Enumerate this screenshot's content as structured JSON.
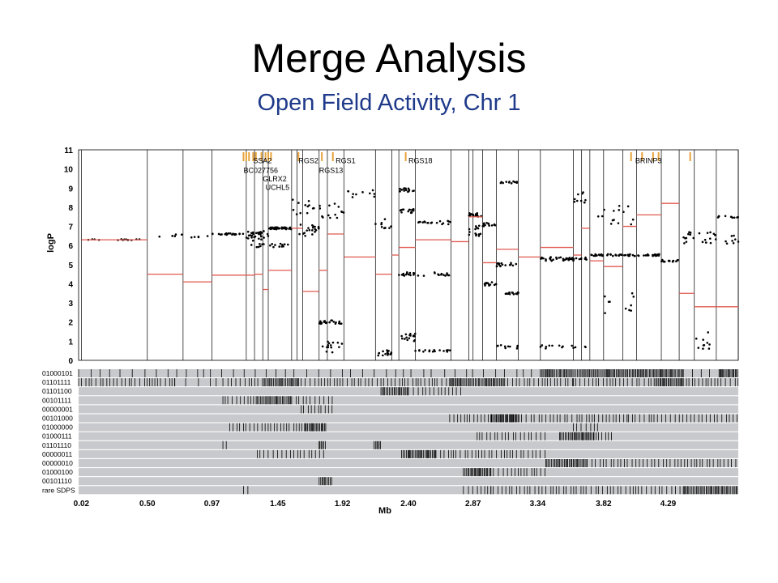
{
  "slide": {
    "title": "Merge Analysis",
    "subtitle": "Open Field Activity, Chr 1"
  },
  "colors": {
    "merge_line": "#e05a50",
    "gene_tick": "#e8a33a",
    "track_bg": "#c8c9cc",
    "point": "#000000"
  },
  "chart_data": {
    "type": "scatter",
    "title": "",
    "xlabel": "Mb",
    "ylabel": "logP",
    "xlim": [
      0.0,
      4.8
    ],
    "ylim": [
      0,
      11
    ],
    "x_ticks": [
      "0.02",
      "0.50",
      "0.97",
      "1.45",
      "1.92",
      "2.40",
      "2.87",
      "3.34",
      "3.82",
      "4.29"
    ],
    "x_tick_values": [
      0.02,
      0.5,
      0.97,
      1.45,
      1.92,
      2.4,
      2.87,
      3.34,
      3.82,
      4.29
    ],
    "y_ticks": [
      "0",
      "1",
      "2",
      "3",
      "4",
      "5",
      "6",
      "7",
      "8",
      "9",
      "10",
      "11"
    ],
    "grid": false,
    "gene_labels": [
      {
        "label": "SSA2",
        "x": 1.27,
        "y": 10.3
      },
      {
        "label": "BC027756",
        "x": 1.2,
        "y": 9.8
      },
      {
        "label": "GLRX2",
        "x": 1.34,
        "y": 9.35
      },
      {
        "label": "UCHL5",
        "x": 1.36,
        "y": 8.9
      },
      {
        "label": "RGS2",
        "x": 1.6,
        "y": 10.3
      },
      {
        "label": "RGS13",
        "x": 1.75,
        "y": 9.8
      },
      {
        "label": "RGS1",
        "x": 1.87,
        "y": 10.3
      },
      {
        "label": "RGS18",
        "x": 2.4,
        "y": 10.3
      },
      {
        "label": "BRINP3",
        "x": 4.05,
        "y": 10.3
      }
    ],
    "gene_ticks_x": [
      1.2,
      1.22,
      1.24,
      1.27,
      1.29,
      1.33,
      1.36,
      1.38,
      1.4,
      1.6,
      1.77,
      1.85,
      2.38,
      4.02,
      4.1,
      4.18,
      4.22,
      4.45
    ],
    "interval_boundaries": [
      0.02,
      0.5,
      0.76,
      0.97,
      1.22,
      1.28,
      1.34,
      1.38,
      1.55,
      1.59,
      1.63,
      1.75,
      1.81,
      1.93,
      2.16,
      2.28,
      2.33,
      2.45,
      2.71,
      2.84,
      2.87,
      2.94,
      3.04,
      3.2,
      3.36,
      3.6,
      3.66,
      3.72,
      3.82,
      3.96,
      4.06,
      4.24,
      4.37,
      4.48,
      4.64,
      4.8
    ],
    "merge_segments": [
      {
        "x0": 0.02,
        "x1": 0.5,
        "y": 6.3
      },
      {
        "x0": 0.5,
        "x1": 0.76,
        "y": 4.5
      },
      {
        "x0": 0.76,
        "x1": 0.97,
        "y": 4.1
      },
      {
        "x0": 0.97,
        "x1": 1.28,
        "y": 4.45
      },
      {
        "x0": 1.28,
        "x1": 1.34,
        "y": 4.5
      },
      {
        "x0": 1.34,
        "x1": 1.38,
        "y": 3.7
      },
      {
        "x0": 1.38,
        "x1": 1.55,
        "y": 4.7
      },
      {
        "x0": 1.55,
        "x1": 1.63,
        "y": 6.9
      },
      {
        "x0": 1.63,
        "x1": 1.75,
        "y": 3.6
      },
      {
        "x0": 1.75,
        "x1": 1.81,
        "y": 4.7
      },
      {
        "x0": 1.81,
        "x1": 1.93,
        "y": 6.6
      },
      {
        "x0": 1.93,
        "x1": 2.16,
        "y": 5.4
      },
      {
        "x0": 2.16,
        "x1": 2.28,
        "y": 4.5
      },
      {
        "x0": 2.28,
        "x1": 2.33,
        "y": 5.5
      },
      {
        "x0": 2.33,
        "x1": 2.45,
        "y": 5.9
      },
      {
        "x0": 2.45,
        "x1": 2.71,
        "y": 6.3
      },
      {
        "x0": 2.71,
        "x1": 2.84,
        "y": 6.2
      },
      {
        "x0": 2.84,
        "x1": 2.94,
        "y": 7.5
      },
      {
        "x0": 2.94,
        "x1": 3.04,
        "y": 5.1
      },
      {
        "x0": 3.04,
        "x1": 3.2,
        "y": 5.8
      },
      {
        "x0": 3.2,
        "x1": 3.36,
        "y": 5.4
      },
      {
        "x0": 3.36,
        "x1": 3.6,
        "y": 5.9
      },
      {
        "x0": 3.6,
        "x1": 3.66,
        "y": 5.5
      },
      {
        "x0": 3.66,
        "x1": 3.72,
        "y": 6.9
      },
      {
        "x0": 3.72,
        "x1": 3.82,
        "y": 5.2
      },
      {
        "x0": 3.82,
        "x1": 3.96,
        "y": 4.9
      },
      {
        "x0": 3.96,
        "x1": 4.06,
        "y": 7.0
      },
      {
        "x0": 4.06,
        "x1": 4.24,
        "y": 7.6
      },
      {
        "x0": 4.24,
        "x1": 4.37,
        "y": 8.2
      },
      {
        "x0": 4.37,
        "x1": 4.48,
        "y": 3.5
      },
      {
        "x0": 4.48,
        "x1": 4.64,
        "y": 2.8
      },
      {
        "x0": 4.64,
        "x1": 4.8,
        "y": 2.8
      }
    ],
    "point_clusters": [
      {
        "x0": 0.02,
        "x1": 0.48,
        "y": 6.3,
        "n": 14,
        "jitter": 0.03
      },
      {
        "x0": 0.52,
        "x1": 0.95,
        "y": 6.5,
        "n": 10,
        "jitter": 0.1
      },
      {
        "x0": 0.97,
        "x1": 1.22,
        "y": 6.6,
        "n": 22,
        "jitter": 0.04
      },
      {
        "x0": 1.22,
        "x1": 1.38,
        "y": 6.5,
        "n": 30,
        "jitter": 0.25
      },
      {
        "x0": 1.38,
        "x1": 1.55,
        "y": 6.9,
        "n": 40,
        "jitter": 0.05
      },
      {
        "x0": 1.25,
        "x1": 1.55,
        "y": 6.0,
        "n": 18,
        "jitter": 0.1
      },
      {
        "x0": 1.55,
        "x1": 1.75,
        "y": 8.0,
        "n": 12,
        "jitter": 0.4
      },
      {
        "x0": 1.6,
        "x1": 1.75,
        "y": 6.8,
        "n": 20,
        "jitter": 0.3
      },
      {
        "x0": 1.75,
        "x1": 1.93,
        "y": 7.8,
        "n": 14,
        "jitter": 0.4
      },
      {
        "x0": 1.75,
        "x1": 1.93,
        "y": 2.0,
        "n": 22,
        "jitter": 0.1
      },
      {
        "x0": 1.75,
        "x1": 1.93,
        "y": 0.7,
        "n": 14,
        "jitter": 0.3
      },
      {
        "x0": 1.93,
        "x1": 2.16,
        "y": 8.7,
        "n": 10,
        "jitter": 0.2
      },
      {
        "x0": 2.16,
        "x1": 2.28,
        "y": 0.4,
        "n": 16,
        "jitter": 0.15
      },
      {
        "x0": 2.16,
        "x1": 2.28,
        "y": 7.2,
        "n": 10,
        "jitter": 0.3
      },
      {
        "x0": 2.33,
        "x1": 2.45,
        "y": 8.9,
        "n": 14,
        "jitter": 0.1
      },
      {
        "x0": 2.33,
        "x1": 2.45,
        "y": 7.8,
        "n": 14,
        "jitter": 0.1
      },
      {
        "x0": 2.33,
        "x1": 2.45,
        "y": 4.5,
        "n": 14,
        "jitter": 0.1
      },
      {
        "x0": 2.33,
        "x1": 2.45,
        "y": 1.2,
        "n": 16,
        "jitter": 0.2
      },
      {
        "x0": 2.45,
        "x1": 2.71,
        "y": 7.2,
        "n": 18,
        "jitter": 0.1
      },
      {
        "x0": 2.45,
        "x1": 2.71,
        "y": 4.5,
        "n": 14,
        "jitter": 0.1
      },
      {
        "x0": 2.45,
        "x1": 2.71,
        "y": 0.5,
        "n": 16,
        "jitter": 0.05
      },
      {
        "x0": 2.84,
        "x1": 2.94,
        "y": 7.6,
        "n": 20,
        "jitter": 0.1
      },
      {
        "x0": 2.84,
        "x1": 2.94,
        "y": 6.8,
        "n": 14,
        "jitter": 0.3
      },
      {
        "x0": 2.94,
        "x1": 3.04,
        "y": 7.1,
        "n": 14,
        "jitter": 0.1
      },
      {
        "x0": 2.94,
        "x1": 3.04,
        "y": 4.0,
        "n": 14,
        "jitter": 0.1
      },
      {
        "x0": 3.04,
        "x1": 3.2,
        "y": 9.3,
        "n": 12,
        "jitter": 0.05
      },
      {
        "x0": 3.04,
        "x1": 3.2,
        "y": 5.0,
        "n": 16,
        "jitter": 0.1
      },
      {
        "x0": 3.04,
        "x1": 3.2,
        "y": 3.5,
        "n": 14,
        "jitter": 0.05
      },
      {
        "x0": 3.04,
        "x1": 3.2,
        "y": 0.7,
        "n": 10,
        "jitter": 0.1
      },
      {
        "x0": 3.36,
        "x1": 3.72,
        "y": 5.3,
        "n": 40,
        "jitter": 0.1
      },
      {
        "x0": 3.36,
        "x1": 3.72,
        "y": 0.7,
        "n": 14,
        "jitter": 0.1
      },
      {
        "x0": 3.6,
        "x1": 3.72,
        "y": 8.5,
        "n": 10,
        "jitter": 0.3
      },
      {
        "x0": 3.72,
        "x1": 4.24,
        "y": 5.5,
        "n": 60,
        "jitter": 0.05
      },
      {
        "x0": 3.72,
        "x1": 4.06,
        "y": 7.6,
        "n": 14,
        "jitter": 0.5
      },
      {
        "x0": 3.82,
        "x1": 4.06,
        "y": 3.0,
        "n": 10,
        "jitter": 0.6
      },
      {
        "x0": 4.24,
        "x1": 4.37,
        "y": 5.2,
        "n": 18,
        "jitter": 0.05
      },
      {
        "x0": 4.37,
        "x1": 4.64,
        "y": 6.4,
        "n": 22,
        "jitter": 0.3
      },
      {
        "x0": 4.48,
        "x1": 4.64,
        "y": 1.0,
        "n": 10,
        "jitter": 0.5
      },
      {
        "x0": 4.64,
        "x1": 4.8,
        "y": 7.5,
        "n": 10,
        "jitter": 0.05
      },
      {
        "x0": 4.64,
        "x1": 4.8,
        "y": 6.4,
        "n": 8,
        "jitter": 0.3
      }
    ],
    "tracks": [
      {
        "label": "01000101",
        "segments": [
          [
            0.0,
            3.36,
            "n"
          ],
          [
            3.36,
            4.4,
            "d"
          ],
          [
            4.4,
            4.66,
            "n"
          ],
          [
            4.66,
            4.8,
            "d"
          ]
        ]
      },
      {
        "label": "01101111",
        "segments": [
          [
            0.0,
            0.7,
            "s"
          ],
          [
            0.7,
            1.05,
            "n"
          ],
          [
            1.05,
            1.35,
            "s"
          ],
          [
            1.35,
            1.6,
            "d"
          ],
          [
            1.6,
            2.2,
            "s"
          ],
          [
            2.2,
            2.7,
            "s"
          ],
          [
            2.7,
            3.1,
            "d"
          ],
          [
            3.1,
            3.6,
            "s"
          ],
          [
            3.6,
            4.2,
            "s"
          ],
          [
            4.2,
            4.4,
            "d"
          ],
          [
            4.4,
            4.8,
            "s"
          ]
        ]
      },
      {
        "label": "01101100",
        "segments": [
          [
            2.2,
            2.4,
            "d"
          ],
          [
            2.4,
            2.8,
            "s"
          ]
        ]
      },
      {
        "label": "00101111",
        "segments": [
          [
            1.05,
            1.3,
            "s"
          ],
          [
            1.3,
            1.55,
            "d"
          ],
          [
            1.55,
            1.85,
            "s"
          ]
        ]
      },
      {
        "label": "00000001",
        "segments": [
          [
            1.62,
            1.85,
            "s"
          ]
        ]
      },
      {
        "label": "00101000",
        "segments": [
          [
            2.7,
            3.4,
            "s"
          ],
          [
            3.0,
            3.2,
            "d"
          ],
          [
            3.4,
            4.0,
            "s"
          ],
          [
            4.0,
            4.8,
            "s"
          ]
        ]
      },
      {
        "label": "01000000",
        "segments": [
          [
            1.1,
            1.65,
            "s"
          ],
          [
            1.65,
            1.8,
            "d"
          ],
          [
            3.6,
            3.8,
            "s"
          ]
        ]
      },
      {
        "label": "01000111",
        "segments": [
          [
            2.9,
            3.4,
            "s"
          ],
          [
            3.5,
            3.75,
            "d"
          ],
          [
            3.75,
            3.9,
            "s"
          ]
        ]
      },
      {
        "label": "01101110",
        "segments": [
          [
            1.05,
            1.1,
            "s"
          ],
          [
            1.75,
            1.8,
            "d"
          ],
          [
            2.15,
            2.2,
            "d"
          ]
        ]
      },
      {
        "label": "00000011",
        "segments": [
          [
            1.3,
            1.8,
            "s"
          ],
          [
            2.35,
            2.6,
            "d"
          ],
          [
            2.6,
            3.4,
            "s"
          ]
        ]
      },
      {
        "label": "00000010",
        "segments": [
          [
            3.4,
            3.7,
            "d"
          ],
          [
            3.7,
            4.8,
            "s"
          ]
        ]
      },
      {
        "label": "01000100",
        "segments": [
          [
            2.8,
            3.0,
            "d"
          ],
          [
            3.0,
            3.4,
            "s"
          ]
        ]
      },
      {
        "label": "00101110",
        "segments": [
          [
            1.75,
            1.85,
            "d"
          ]
        ]
      },
      {
        "label": "rare SDPS",
        "segments": [
          [
            1.2,
            1.25,
            "s"
          ],
          [
            2.8,
            3.0,
            "s"
          ],
          [
            3.0,
            3.4,
            "s"
          ],
          [
            3.4,
            4.4,
            "s"
          ],
          [
            4.4,
            4.8,
            "d"
          ]
        ]
      }
    ]
  }
}
